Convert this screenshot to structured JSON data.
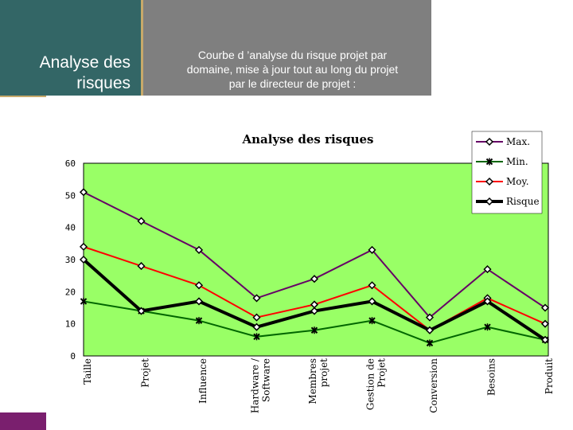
{
  "slide": {
    "title_line1": "Analyse des",
    "title_line2": "risques",
    "subtitle_line1": "Courbe d ’analyse du risque projet par",
    "subtitle_line2": "domaine, mise à jour tout au long du projet",
    "subtitle_line3": "par le directeur de projet :"
  },
  "colors": {
    "title_bg": "#336666",
    "header_bg": "#7f7f7f",
    "plot_bg": "#99ff66",
    "max": "#660066",
    "min": "#006600",
    "moy": "#ff0000",
    "risque": "#000000"
  },
  "chart_data": {
    "type": "line",
    "title": "Analyse des risques",
    "categories": [
      [
        "Taille"
      ],
      [
        "Projet"
      ],
      [
        "Influence"
      ],
      [
        "Hardware /",
        "Software"
      ],
      [
        "Membres",
        "projet"
      ],
      [
        "Gestion de",
        "Projet"
      ],
      [
        "Conversion"
      ],
      [
        "Besoins"
      ],
      [
        "Produit"
      ]
    ],
    "ylim": [
      0,
      60
    ],
    "yticks": [
      "0",
      "10",
      "20",
      "30",
      "40",
      "50",
      "60"
    ],
    "grid": false,
    "legend_position": "top-right",
    "series": [
      {
        "name": "Max.",
        "values": [
          51,
          42,
          33,
          18,
          24,
          33,
          12,
          27,
          15
        ]
      },
      {
        "name": "Min.",
        "values": [
          17,
          14,
          11,
          6,
          8,
          11,
          4,
          9,
          5
        ]
      },
      {
        "name": "Moy.",
        "values": [
          34,
          28,
          22,
          12,
          16,
          22,
          8,
          18,
          10
        ]
      },
      {
        "name": "Risque",
        "values": [
          30,
          14,
          17,
          9,
          14,
          17,
          8,
          17,
          5
        ]
      }
    ]
  }
}
